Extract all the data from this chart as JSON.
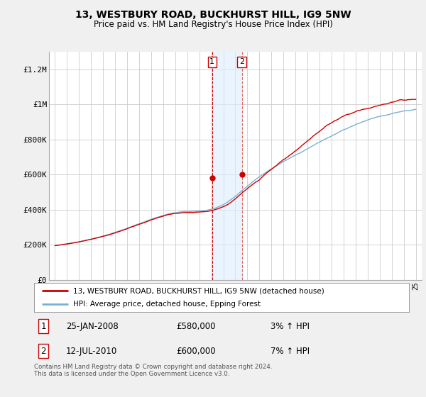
{
  "title": "13, WESTBURY ROAD, BUCKHURST HILL, IG9 5NW",
  "subtitle": "Price paid vs. HM Land Registry's House Price Index (HPI)",
  "ylabel_ticks": [
    "£0",
    "£200K",
    "£400K",
    "£600K",
    "£800K",
    "£1M",
    "£1.2M"
  ],
  "ytick_values": [
    0,
    200000,
    400000,
    600000,
    800000,
    1000000,
    1200000
  ],
  "ylim": [
    0,
    1300000
  ],
  "line1_color": "#cc0000",
  "line2_color": "#7ab0d4",
  "annotation_box_color": "#cc0000",
  "annotation_shade_color": "#ddeeff",
  "annotation_line_color": "#cc0000",
  "sale1_date": "25-JAN-2008",
  "sale1_price": "£580,000",
  "sale1_hpi": "3% ↑ HPI",
  "sale2_date": "12-JUL-2010",
  "sale2_price": "£600,000",
  "sale2_hpi": "7% ↑ HPI",
  "legend1_label": "13, WESTBURY ROAD, BUCKHURST HILL, IG9 5NW (detached house)",
  "legend2_label": "HPI: Average price, detached house, Epping Forest",
  "footer": "Contains HM Land Registry data © Crown copyright and database right 2024.\nThis data is licensed under the Open Government Licence v3.0.",
  "background_color": "#f0f0f0",
  "plot_background": "#ffffff",
  "grid_color": "#cccccc",
  "xlim_start": 1994.5,
  "xlim_end": 2025.5,
  "sale1_year": 2008.07,
  "sale2_year": 2010.54,
  "sale1_price_val": 580000,
  "sale2_price_val": 600000
}
